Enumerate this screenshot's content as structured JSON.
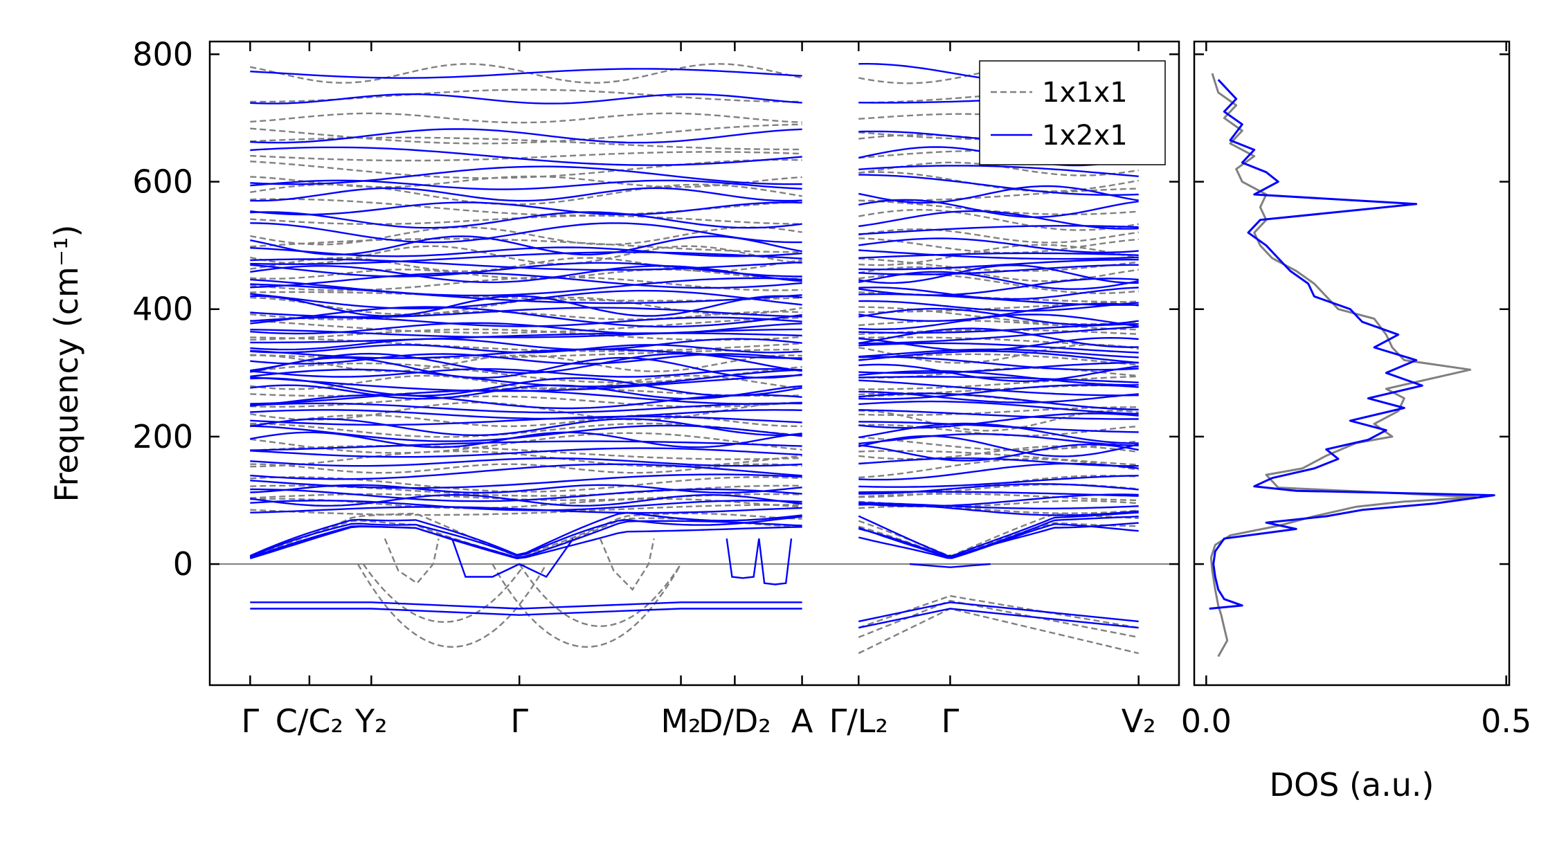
{
  "chart_data": [
    {
      "type": "line",
      "panel": "phonon band structure",
      "ylabel": "Frequency (cm⁻¹)",
      "ylim": [
        -190,
        820
      ],
      "yticks": [
        0,
        200,
        400,
        600,
        800
      ],
      "k_labels": [
        "Γ",
        "C/C₂",
        "Y₂",
        "Γ",
        "M₂",
        "D/D₂",
        "A",
        "Γ/L₂",
        "Γ",
        "V₂"
      ],
      "k_positions": [
        0,
        0.22,
        0.45,
        1.0,
        1.6,
        1.8,
        2.05,
        2.26,
        2.6,
        3.3
      ],
      "xlim": [
        -0.15,
        3.45
      ],
      "segments": [
        [
          0,
          2.05
        ],
        [
          2.26,
          3.3
        ]
      ],
      "legend": {
        "placement": "top-right",
        "entries": [
          "1x1x1",
          "1x2x1"
        ]
      },
      "series": [
        {
          "name": "1x1x1",
          "color": "#808080",
          "style": "dashed",
          "flat_bands": [
            65,
            75,
            85,
            95,
            105,
            115,
            125,
            150,
            165,
            175,
            190,
            210,
            225,
            240,
            255,
            270,
            285,
            300,
            315,
            330,
            345,
            360,
            375,
            390,
            405,
            420,
            440,
            455,
            470,
            485,
            500,
            515,
            540,
            560,
            580,
            600,
            620,
            640,
            660,
            675,
            700,
            735,
            770
          ],
          "imaginary_branches": {
            "gamma_minimum": -130,
            "L2_gamma_values": [
              -100,
              -115,
              -140
            ]
          }
        },
        {
          "name": "1x2x1",
          "color": "#0000ff",
          "style": "solid",
          "flat_bands": [
            55,
            62,
            70,
            78,
            85,
            92,
            100,
            108,
            118,
            130,
            145,
            160,
            175,
            185,
            195,
            205,
            215,
            225,
            235,
            245,
            255,
            262,
            270,
            278,
            285,
            292,
            300,
            308,
            315,
            322,
            330,
            338,
            345,
            355,
            362,
            370,
            380,
            388,
            395,
            405,
            415,
            425,
            435,
            445,
            455,
            462,
            470,
            480,
            490,
            500,
            520,
            540,
            558,
            580,
            595,
            610,
            640,
            672,
            730,
            770
          ],
          "imaginary_branches": {
            "flat_values": [
              -60,
              -70
            ],
            "dips_near_D2": [
              -20,
              -30
            ]
          }
        }
      ]
    },
    {
      "type": "line",
      "panel": "density of states",
      "xlabel": "DOS (a.u.)",
      "xlim": [
        -0.02,
        0.505
      ],
      "xticks": [
        0.0,
        0.5
      ],
      "xtick_labels": [
        "0.0",
        "0.5"
      ],
      "ylim": [
        -190,
        820
      ],
      "series": [
        {
          "name": "1x1x1",
          "color": "#808080",
          "points": [
            [
              0.02,
              -145
            ],
            [
              0.035,
              -120
            ],
            [
              0.03,
              -100
            ],
            [
              0.025,
              -80
            ],
            [
              0.02,
              -65
            ],
            [
              0.015,
              -40
            ],
            [
              0.01,
              -10
            ],
            [
              0.008,
              10
            ],
            [
              0.015,
              30
            ],
            [
              0.04,
              45
            ],
            [
              0.12,
              60
            ],
            [
              0.18,
              75
            ],
            [
              0.25,
              90
            ],
            [
              0.33,
              98
            ],
            [
              0.45,
              105
            ],
            [
              0.3,
              112
            ],
            [
              0.12,
              120
            ],
            [
              0.1,
              140
            ],
            [
              0.16,
              150
            ],
            [
              0.2,
              170
            ],
            [
              0.25,
              190
            ],
            [
              0.31,
              200
            ],
            [
              0.28,
              220
            ],
            [
              0.32,
              240
            ],
            [
              0.33,
              260
            ],
            [
              0.3,
              275
            ],
            [
              0.44,
              305
            ],
            [
              0.33,
              320
            ],
            [
              0.31,
              340
            ],
            [
              0.3,
              360
            ],
            [
              0.28,
              385
            ],
            [
              0.22,
              400
            ],
            [
              0.2,
              420
            ],
            [
              0.18,
              440
            ],
            [
              0.15,
              460
            ],
            [
              0.11,
              480
            ],
            [
              0.09,
              500
            ],
            [
              0.08,
              520
            ],
            [
              0.1,
              540
            ],
            [
              0.09,
              560
            ],
            [
              0.1,
              580
            ],
            [
              0.06,
              600
            ],
            [
              0.05,
              620
            ],
            [
              0.08,
              640
            ],
            [
              0.04,
              660
            ],
            [
              0.06,
              680
            ],
            [
              0.03,
              700
            ],
            [
              0.05,
              720
            ],
            [
              0.02,
              740
            ],
            [
              0.01,
              770
            ]
          ]
        },
        {
          "name": "1x2x1",
          "color": "#0000ff",
          "points": [
            [
              0.005,
              -70
            ],
            [
              0.06,
              -65
            ],
            [
              0.03,
              -55
            ],
            [
              0.02,
              -40
            ],
            [
              0.015,
              -20
            ],
            [
              0.012,
              0
            ],
            [
              0.015,
              20
            ],
            [
              0.03,
              40
            ],
            [
              0.15,
              55
            ],
            [
              0.1,
              65
            ],
            [
              0.2,
              75
            ],
            [
              0.26,
              85
            ],
            [
              0.38,
              95
            ],
            [
              0.48,
              108
            ],
            [
              0.15,
              115
            ],
            [
              0.08,
              122
            ],
            [
              0.11,
              135
            ],
            [
              0.18,
              150
            ],
            [
              0.22,
              165
            ],
            [
              0.2,
              180
            ],
            [
              0.27,
              195
            ],
            [
              0.3,
              210
            ],
            [
              0.24,
              225
            ],
            [
              0.33,
              245
            ],
            [
              0.27,
              260
            ],
            [
              0.36,
              280
            ],
            [
              0.3,
              300
            ],
            [
              0.35,
              320
            ],
            [
              0.28,
              340
            ],
            [
              0.32,
              360
            ],
            [
              0.26,
              380
            ],
            [
              0.24,
              400
            ],
            [
              0.18,
              420
            ],
            [
              0.17,
              440
            ],
            [
              0.14,
              460
            ],
            [
              0.12,
              480
            ],
            [
              0.1,
              500
            ],
            [
              0.07,
              520
            ],
            [
              0.09,
              540
            ],
            [
              0.35,
              565
            ],
            [
              0.08,
              580
            ],
            [
              0.12,
              600
            ],
            [
              0.1,
              615
            ],
            [
              0.06,
              630
            ],
            [
              0.08,
              650
            ],
            [
              0.04,
              665
            ],
            [
              0.06,
              690
            ],
            [
              0.03,
              710
            ],
            [
              0.05,
              730
            ],
            [
              0.02,
              760
            ]
          ]
        }
      ]
    }
  ]
}
